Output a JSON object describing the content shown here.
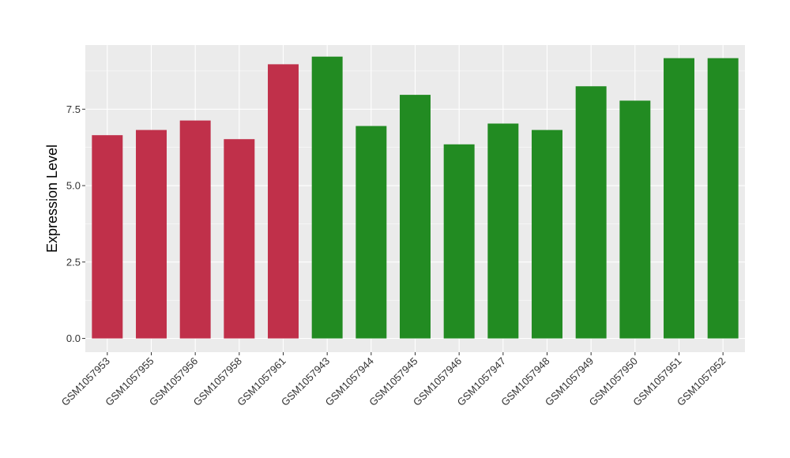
{
  "chart_data": {
    "type": "bar",
    "title": "",
    "xlabel": "",
    "ylabel": "Expression Level",
    "ylim": [
      -0.45,
      9.6
    ],
    "yticks": [
      0.0,
      2.5,
      5.0,
      7.5
    ],
    "ytick_labels": [
      "0.0",
      "2.5",
      "5.0",
      "7.5"
    ],
    "grid": true,
    "categories": [
      "GSM1057953",
      "GSM1057955",
      "GSM1057956",
      "GSM1057958",
      "GSM1057961",
      "GSM1057943",
      "GSM1057944",
      "GSM1057945",
      "GSM1057946",
      "GSM1057947",
      "GSM1057948",
      "GSM1057949",
      "GSM1057950",
      "GSM1057951",
      "GSM1057952"
    ],
    "values": [
      6.65,
      6.82,
      7.13,
      6.52,
      8.97,
      9.22,
      6.95,
      7.97,
      6.35,
      7.03,
      6.82,
      8.25,
      7.78,
      9.17,
      9.17
    ],
    "bar_colors": [
      "#c0304a",
      "#c0304a",
      "#c0304a",
      "#c0304a",
      "#c0304a",
      "#228b22",
      "#228b22",
      "#228b22",
      "#228b22",
      "#228b22",
      "#228b22",
      "#228b22",
      "#228b22",
      "#228b22",
      "#228b22"
    ],
    "panel_background": "#ebebeb",
    "grid_color": "#ffffff"
  }
}
